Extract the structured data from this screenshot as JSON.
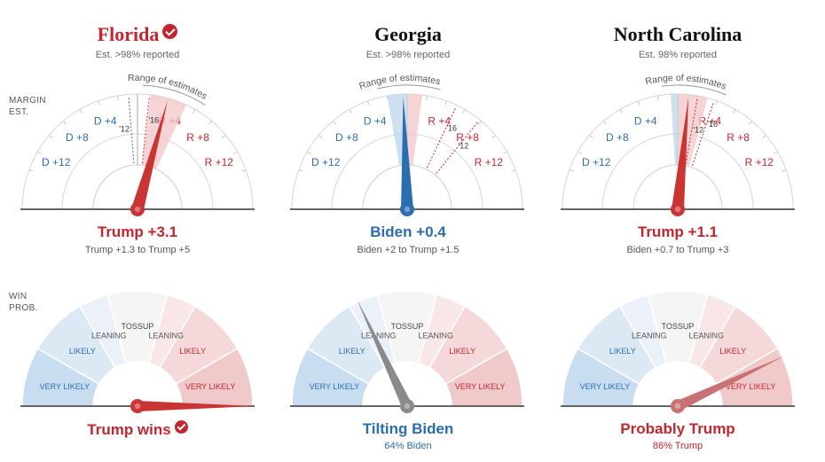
{
  "margin_label": [
    "MARGIN",
    "EST."
  ],
  "win_label": [
    "WIN",
    "PROB."
  ],
  "range_label": "Range of estimates",
  "margin_ticks": {
    "d4": "D +4",
    "d8": "D +8",
    "d12": "D +12",
    "r4": "R +4",
    "r8": "R +8",
    "r12": "R +12"
  },
  "prob_zones": {
    "tossup": "TOSSUP",
    "leaning": "LEANING",
    "likely": "LIKELY",
    "very_likely": "VERY LIKELY"
  },
  "year_labels": {
    "y12": "'12",
    "y16": "'16"
  },
  "states": [
    {
      "name": "Florida",
      "called": true,
      "reported": "Est. >98% reported",
      "margin_text": "Trump +3.1",
      "range_text": "Trump +1.3 to Trump +5",
      "prob_text": "Trump wins",
      "prob_sub": ""
    },
    {
      "name": "Georgia",
      "called": false,
      "reported": "Est. >98% reported",
      "margin_text": "Biden +0.4",
      "range_text": "Biden +2 to Trump +1.5",
      "prob_text": "Tilting Biden",
      "prob_sub": "64% Biden"
    },
    {
      "name": "North Carolina",
      "called": false,
      "reported": "Est. 98% reported",
      "margin_text": "Trump +1.1",
      "range_text": "Biden +0.7 to Trump +3",
      "prob_text": "Probably Trump",
      "prob_sub": "86% Trump"
    }
  ],
  "chart_data": [
    {
      "type": "gauge",
      "state": "Florida",
      "margin_axis": {
        "min": -15,
        "max": 15,
        "ticks": [
          -12,
          -8,
          -4,
          4,
          8,
          12
        ]
      },
      "margin_estimate": 3.1,
      "margin_range": [
        1.3,
        5
      ],
      "history": {
        "2012": -0.9,
        "2016": 1.2
      },
      "win_probability_trump": 1.0,
      "called": true,
      "colors": {
        "rep": "#c2262e",
        "dem": "#2a6eb0",
        "needle_margin": "#c93532",
        "needle_prob": "#c93532"
      }
    },
    {
      "type": "gauge",
      "state": "Georgia",
      "margin_axis": {
        "min": -15,
        "max": 15,
        "ticks": [
          -12,
          -8,
          -4,
          4,
          8,
          12
        ]
      },
      "margin_estimate": -0.4,
      "margin_range": [
        -2,
        1.5
      ],
      "history": {
        "2012": 7.8,
        "2016": 5.1
      },
      "win_probability_trump": 0.36,
      "called": false,
      "colors": {
        "rep": "#c2262e",
        "dem": "#2a6eb0",
        "needle_margin": "#2a6eb0",
        "needle_prob": "#8a8a8a"
      }
    },
    {
      "type": "gauge",
      "state": "North Carolina",
      "margin_axis": {
        "min": -15,
        "max": 15,
        "ticks": [
          -12,
          -8,
          -4,
          4,
          8,
          12
        ]
      },
      "margin_estimate": 1.1,
      "margin_range": [
        -0.7,
        3
      ],
      "history": {
        "2012": 2.0,
        "2016": 3.7
      },
      "win_probability_trump": 0.86,
      "called": false,
      "colors": {
        "rep": "#c2262e",
        "dem": "#2a6eb0",
        "needle_margin": "#c93532",
        "needle_prob": "#c97275"
      }
    }
  ]
}
